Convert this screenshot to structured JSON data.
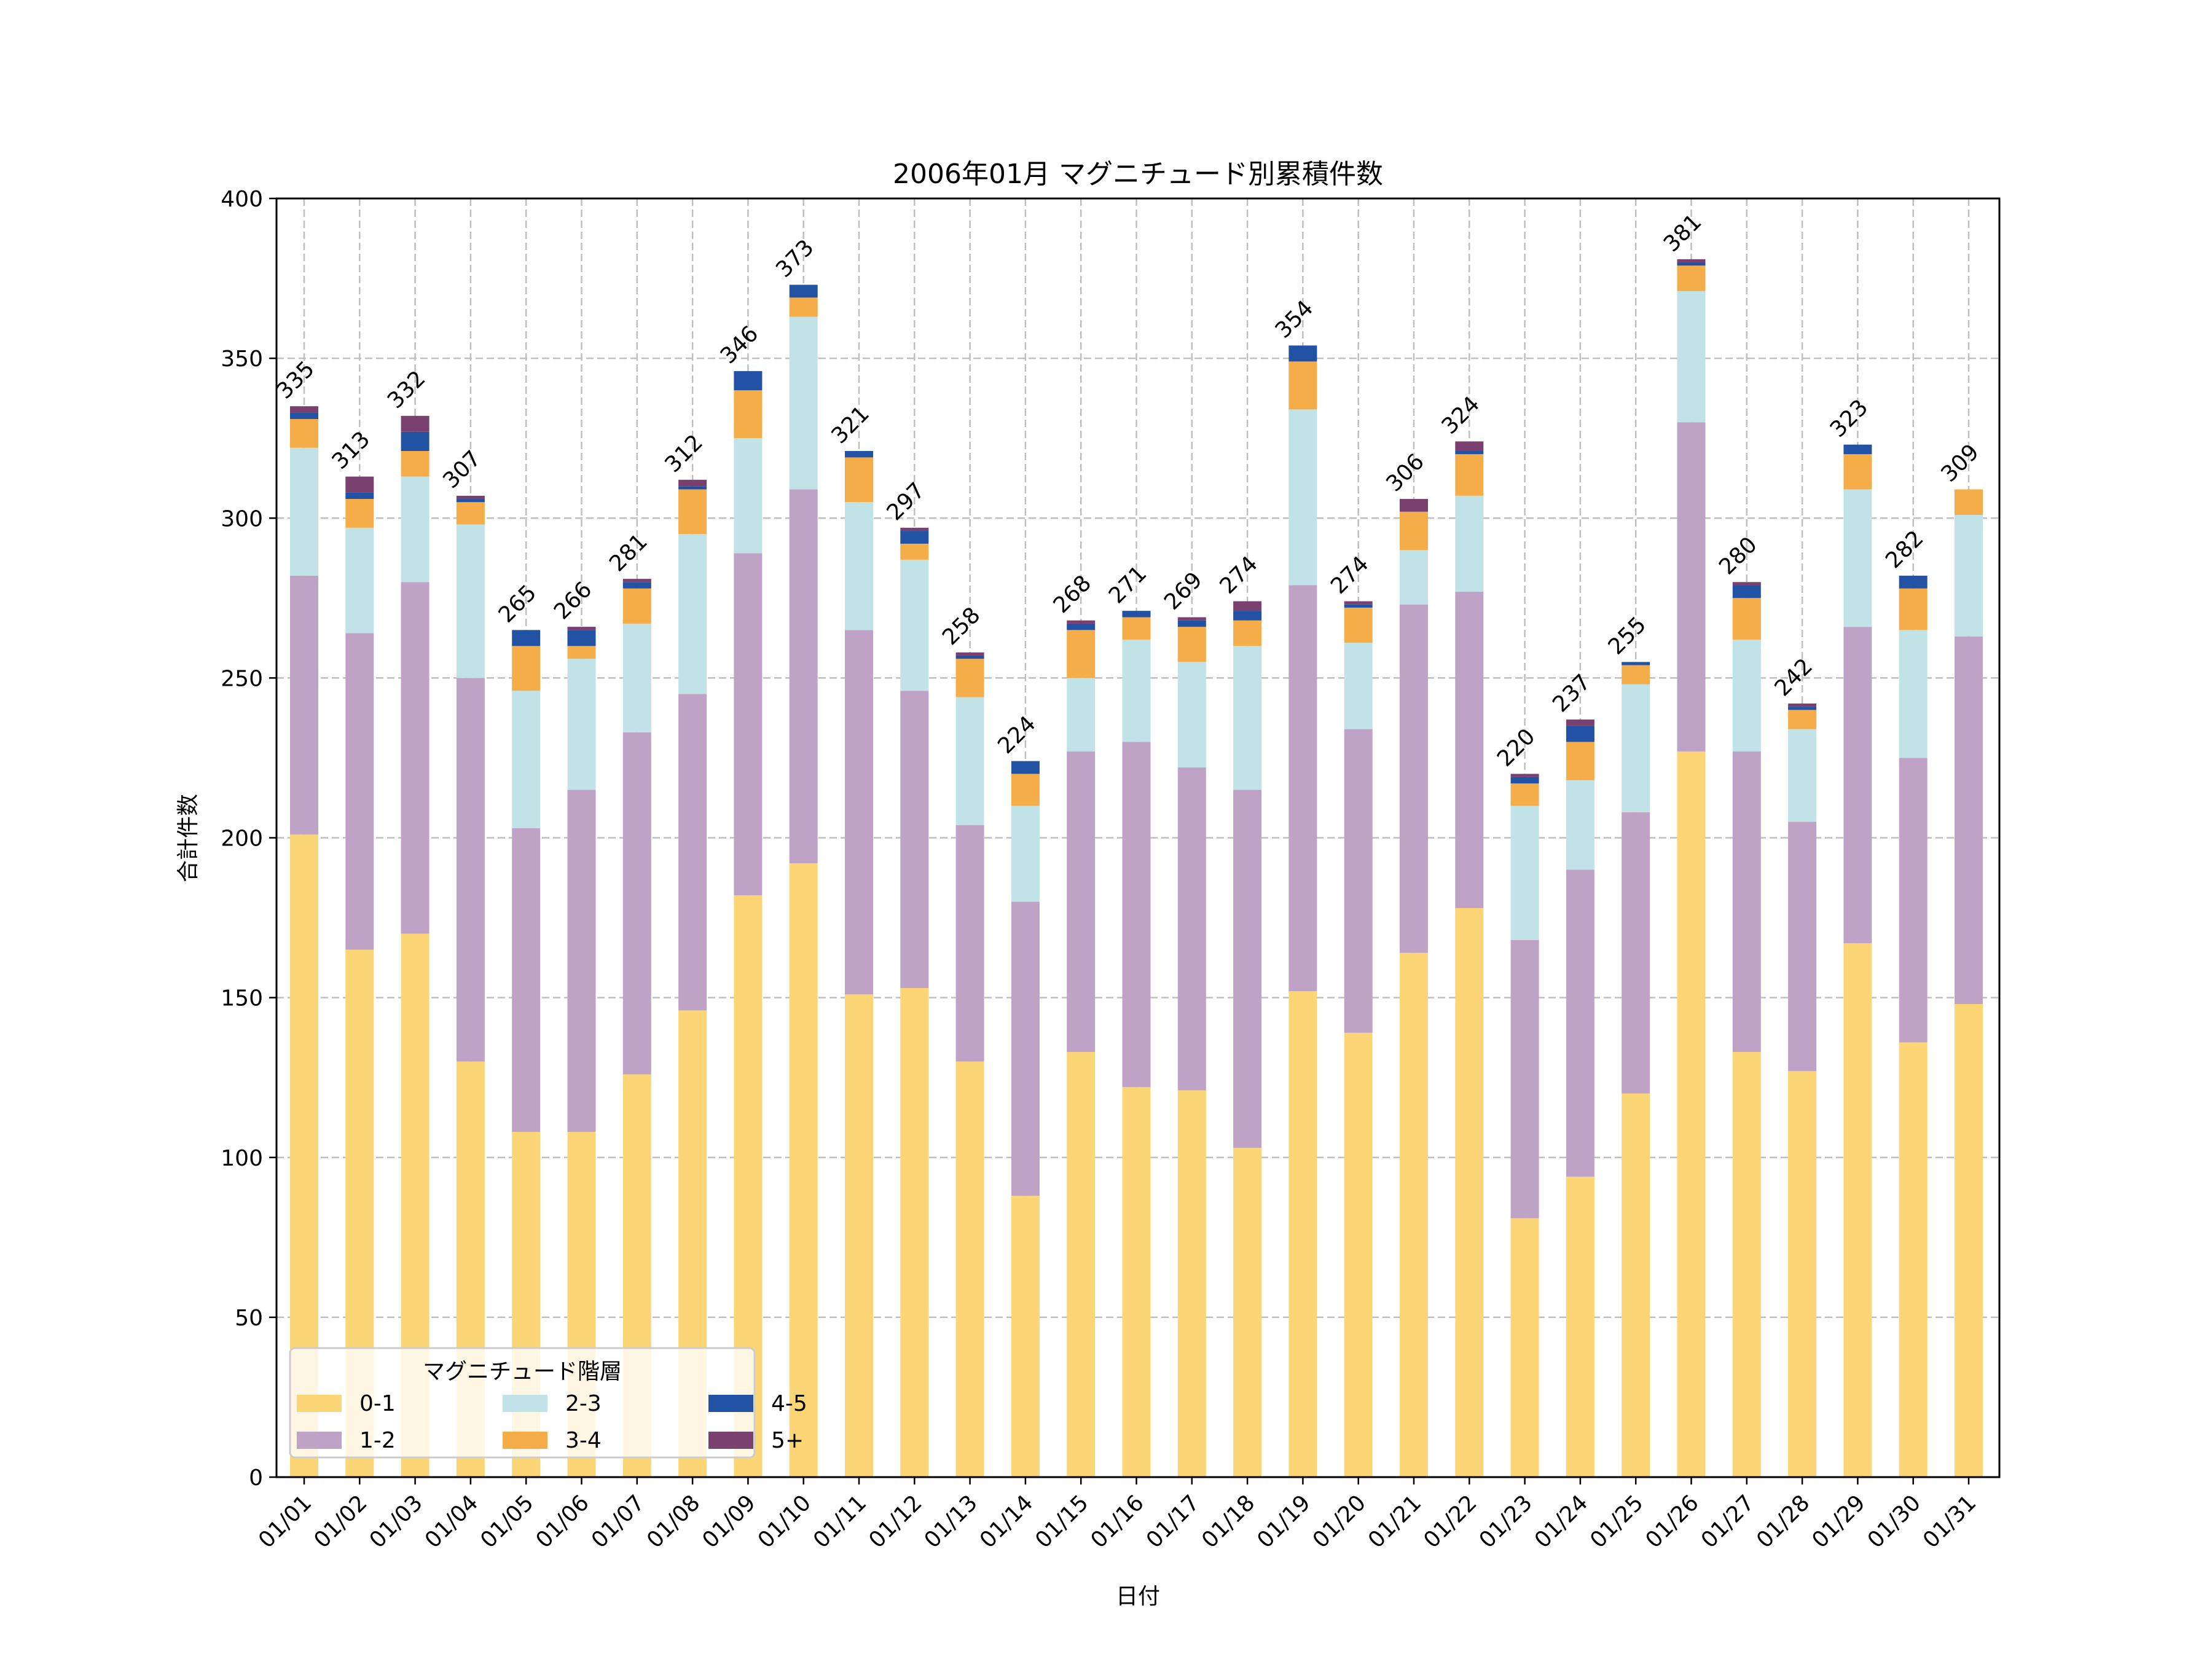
{
  "chart_data": {
    "type": "bar",
    "stacked": true,
    "title": "2006年01月 マグニチュード別累積件数",
    "xlabel": "日付",
    "ylabel": "合計件数",
    "ylim": [
      0,
      400
    ],
    "yticks": [
      0,
      50,
      100,
      150,
      200,
      250,
      300,
      350,
      400
    ],
    "grid": true,
    "legend": {
      "title": "マグニチュード階層",
      "placement": "lower-left",
      "columns": 3
    },
    "categories": [
      "01/01",
      "01/02",
      "01/03",
      "01/04",
      "01/05",
      "01/06",
      "01/07",
      "01/08",
      "01/09",
      "01/10",
      "01/11",
      "01/12",
      "01/13",
      "01/14",
      "01/15",
      "01/16",
      "01/17",
      "01/18",
      "01/19",
      "01/20",
      "01/21",
      "01/22",
      "01/23",
      "01/24",
      "01/25",
      "01/26",
      "01/27",
      "01/28",
      "01/29",
      "01/30",
      "01/31"
    ],
    "series": [
      {
        "name": "0-1",
        "color": "#FCD676",
        "values": [
          201,
          165,
          170,
          130,
          108,
          108,
          126,
          146,
          182,
          192,
          151,
          153,
          130,
          88,
          133,
          122,
          121,
          103,
          152,
          139,
          164,
          178,
          81,
          94,
          120,
          227,
          133,
          127,
          167,
          136,
          148
        ]
      },
      {
        "name": "1-2",
        "color": "#BFA3C7",
        "values": [
          81,
          99,
          110,
          120,
          95,
          107,
          107,
          99,
          107,
          117,
          114,
          93,
          74,
          92,
          94,
          108,
          101,
          112,
          127,
          95,
          109,
          99,
          87,
          96,
          88,
          103,
          94,
          78,
          99,
          89,
          115
        ]
      },
      {
        "name": "2-3",
        "color": "#C1E3E7",
        "values": [
          40,
          33,
          33,
          48,
          43,
          41,
          34,
          50,
          36,
          54,
          40,
          41,
          40,
          30,
          23,
          32,
          33,
          45,
          55,
          27,
          17,
          30,
          42,
          28,
          40,
          41,
          35,
          29,
          43,
          40,
          38
        ]
      },
      {
        "name": "3-4",
        "color": "#F5AD4A",
        "values": [
          9,
          9,
          8,
          7,
          14,
          4,
          11,
          14,
          15,
          6,
          14,
          5,
          12,
          10,
          15,
          7,
          11,
          8,
          15,
          11,
          12,
          13,
          7,
          12,
          6,
          8,
          13,
          6,
          11,
          13,
          8
        ]
      },
      {
        "name": "4-5",
        "color": "#2152A3",
        "values": [
          2,
          2,
          6,
          1,
          5,
          5,
          2,
          1,
          6,
          4,
          2,
          4,
          1,
          4,
          2,
          2,
          2,
          3,
          5,
          1,
          0,
          1,
          2,
          5,
          1,
          1,
          4,
          1,
          3,
          4,
          0
        ]
      },
      {
        "name": "5+",
        "color": "#7A4170",
        "values": [
          2,
          5,
          5,
          1,
          0,
          1,
          1,
          2,
          0,
          0,
          0,
          1,
          1,
          0,
          1,
          0,
          1,
          3,
          0,
          1,
          4,
          3,
          1,
          2,
          0,
          1,
          1,
          1,
          0,
          0,
          0
        ]
      }
    ],
    "totals": [
      335,
      313,
      332,
      307,
      265,
      266,
      281,
      312,
      346,
      373,
      321,
      297,
      258,
      224,
      268,
      271,
      269,
      274,
      354,
      274,
      306,
      324,
      220,
      237,
      255,
      381,
      280,
      242,
      323,
      282,
      309
    ]
  }
}
